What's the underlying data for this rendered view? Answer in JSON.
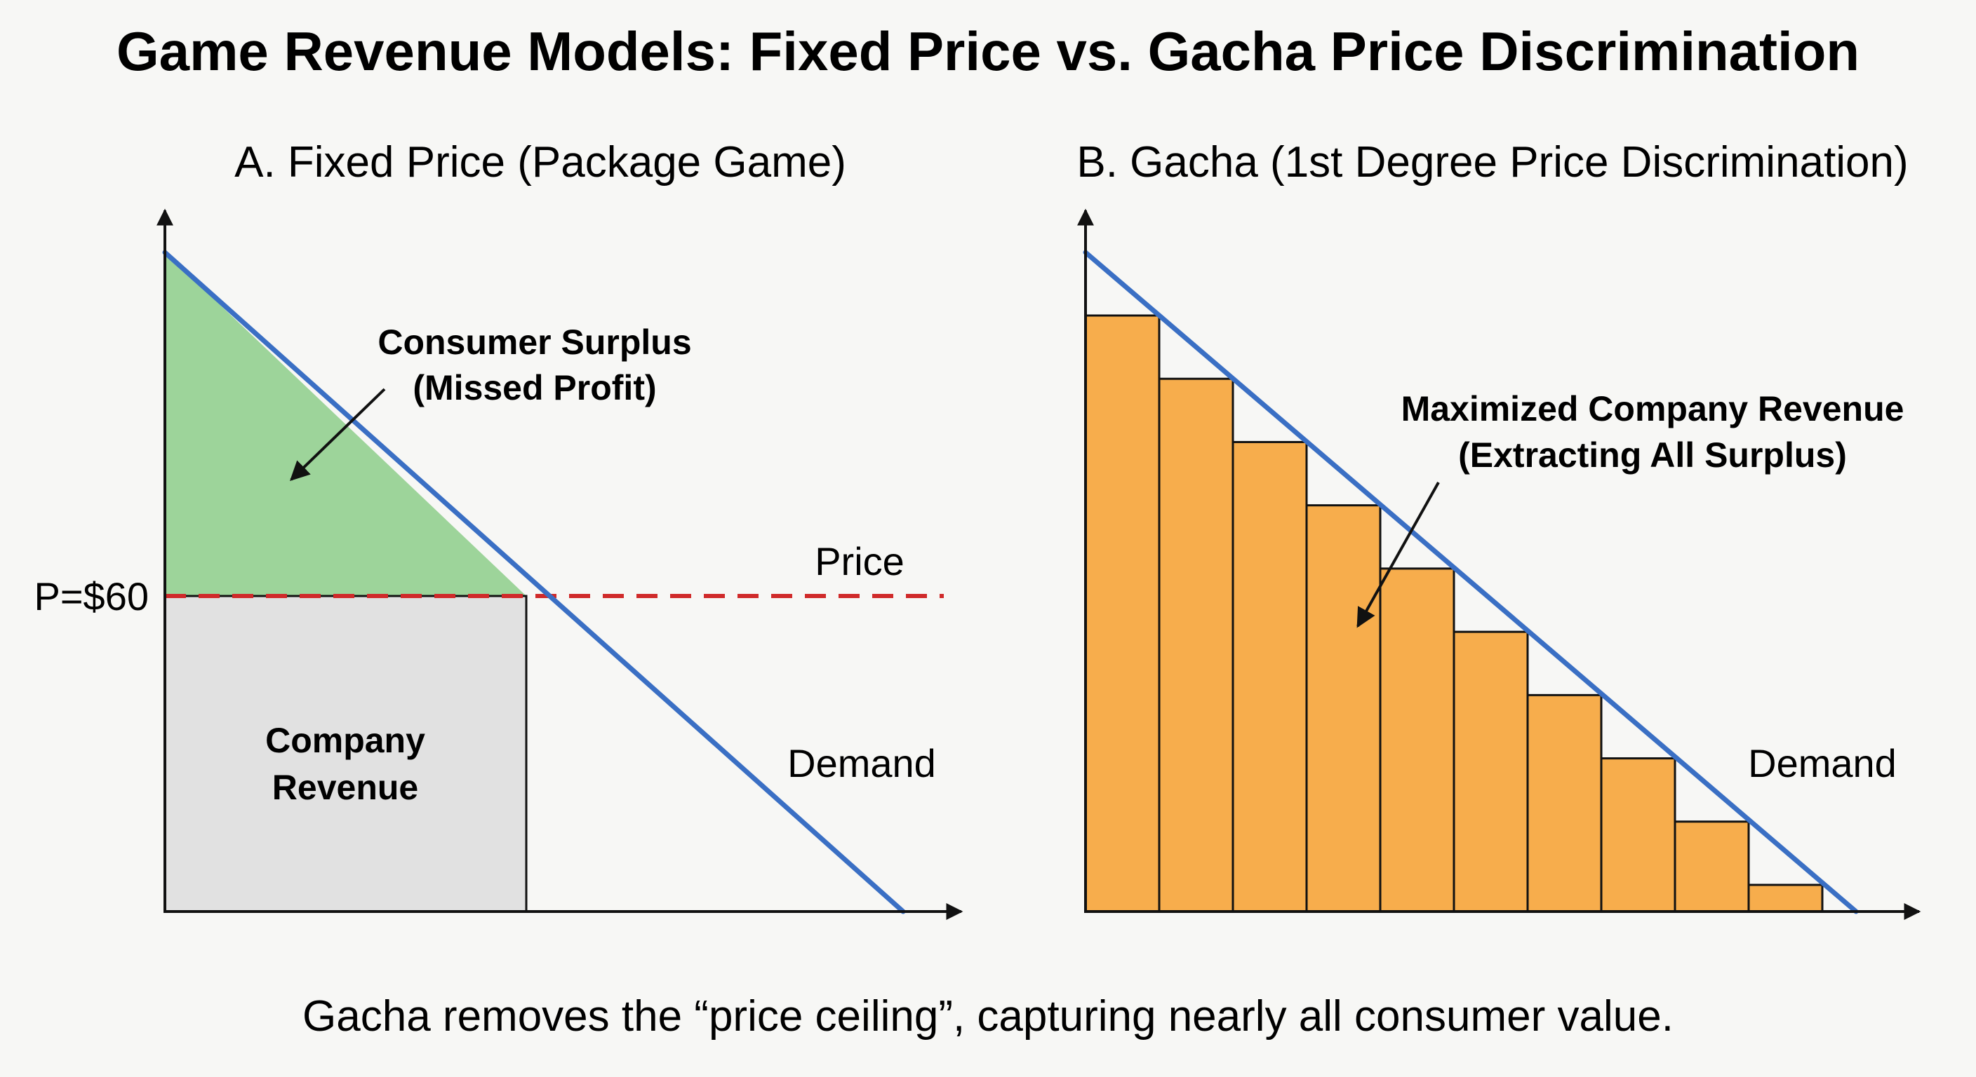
{
  "title": "Game Revenue Models: Fixed Price vs. Gacha Price Discrimination",
  "caption": "Gacha removes the “price ceiling”, capturing nearly all consumer value.",
  "colors": {
    "demand_line": "#3a6fc4",
    "consumer_surplus": "#9dd49a",
    "company_revenue_fixed": "#e1e1e1",
    "price_line": "#d02a2a",
    "gacha_bars": "#f7ad4c",
    "axis": "#111111"
  },
  "panel_a": {
    "title": "A. Fixed Price (Package Game)",
    "price_tick": "P=$60",
    "price_label": "Price",
    "demand_label": "Demand",
    "consumer_surplus_line1": "Consumer Surplus",
    "consumer_surplus_line2": "(Missed Profit)",
    "company_revenue_line1": "Company",
    "company_revenue_line2": "Revenue"
  },
  "panel_b": {
    "title": "B. Gacha (1st Degree Price Discrimination)",
    "demand_label": "Demand",
    "revenue_line1": "Maximized Company Revenue",
    "revenue_line2": "(Extracting All Surplus)",
    "bar_count": 10
  }
}
